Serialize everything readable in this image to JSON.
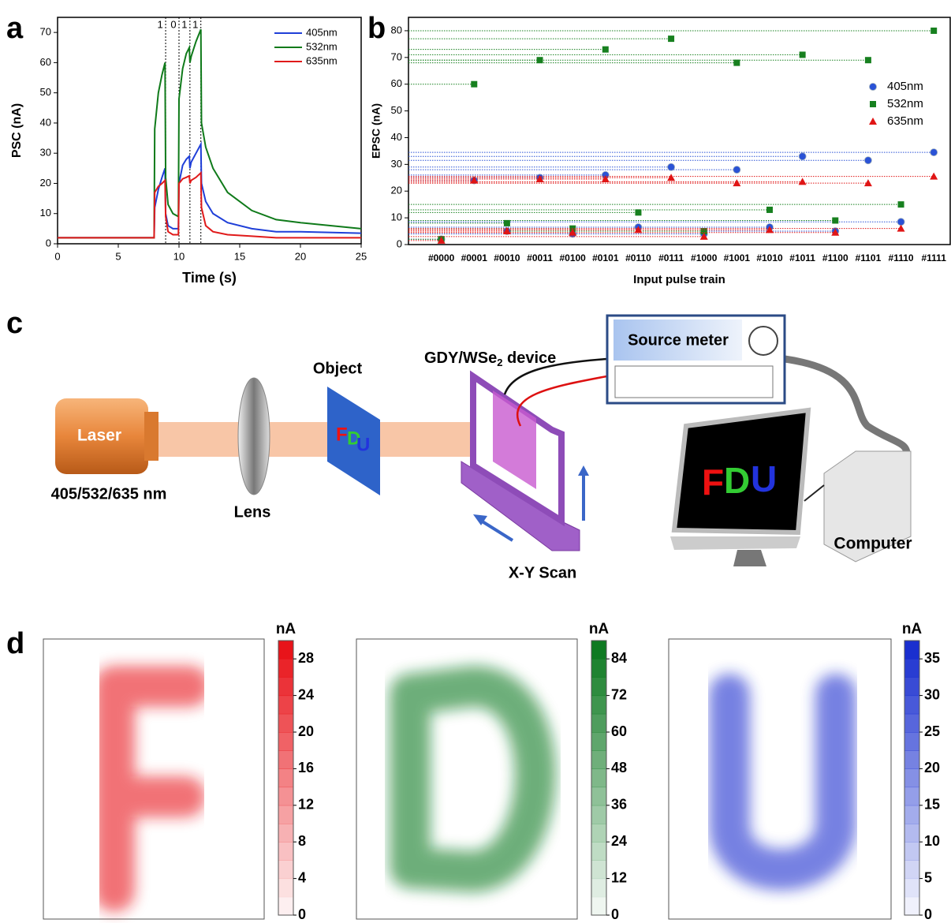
{
  "panel_labels": [
    "a",
    "b",
    "c",
    "d"
  ],
  "chart_data": [
    {
      "type": "line",
      "xlabel": "Time (s)",
      "ylabel": "PSC (nA)",
      "xlim": [
        0,
        25
      ],
      "xticks": [
        0,
        5,
        10,
        15,
        20,
        25
      ],
      "ylim": [
        0,
        75
      ],
      "yticks": [
        0,
        10,
        20,
        30,
        40,
        50,
        60,
        70
      ],
      "legend": "upper right",
      "annotations": [
        "1",
        "0",
        "1",
        "1"
      ],
      "pulse_edges": [
        8.9,
        10,
        10.9,
        11.8
      ],
      "x": [
        0,
        7.95,
        8.0,
        8.3,
        8.6,
        8.85,
        8.9,
        9.1,
        9.5,
        9.95,
        10.0,
        10.3,
        10.6,
        10.85,
        10.9,
        11.0,
        11.4,
        11.8,
        11.85,
        12.2,
        12.8,
        14,
        16,
        18,
        20,
        25
      ],
      "series": [
        {
          "name": "405nm",
          "color": "#1f3fd8",
          "values": [
            2,
            2,
            12,
            18,
            22,
            25,
            10,
            6,
            5,
            5,
            20,
            26,
            28,
            29,
            25,
            27,
            30,
            33,
            20,
            14,
            10,
            7,
            5,
            4,
            4,
            3.5
          ]
        },
        {
          "name": "532nm",
          "color": "#0f7a1a",
          "values": [
            2,
            2,
            38,
            50,
            56,
            60,
            22,
            13,
            10,
            9,
            48,
            58,
            63,
            65,
            60,
            62,
            67,
            71,
            40,
            32,
            25,
            17,
            11,
            8,
            7,
            5
          ]
        },
        {
          "name": "635nm",
          "color": "#e01a1a",
          "values": [
            2,
            2,
            17,
            19,
            20,
            21,
            9,
            4,
            3,
            3,
            20,
            21.5,
            22,
            22.5,
            20,
            21,
            22,
            23.5,
            12,
            6,
            4,
            3,
            2.5,
            2,
            2,
            2
          ]
        }
      ]
    },
    {
      "type": "scatter",
      "xlabel": "Input pulse train",
      "ylabel": "EPSC (nA)",
      "ylim": [
        0,
        85
      ],
      "yticks": [
        0,
        10,
        20,
        30,
        40,
        50,
        60,
        70,
        80
      ],
      "legend": "right",
      "categories": [
        "#0000",
        "#0001",
        "#0010",
        "#0011",
        "#0100",
        "#0101",
        "#0110",
        "#0111",
        "#1000",
        "#1001",
        "#1010",
        "#1011",
        "#1100",
        "#1101",
        "#1110",
        "#1111"
      ],
      "series": [
        {
          "name": "405nm",
          "color": "#2a52d6",
          "marker": "circle",
          "values": [
            2,
            24,
            5,
            25,
            4,
            26,
            6.5,
            29,
            4,
            28,
            6.5,
            33,
            5,
            31.5,
            8.5,
            34.5
          ]
        },
        {
          "name": "532nm",
          "color": "#17801f",
          "marker": "square",
          "values": [
            2,
            60,
            8,
            69,
            6,
            73,
            12,
            77,
            5,
            68,
            13,
            71,
            9,
            69,
            15,
            80
          ]
        },
        {
          "name": "635nm",
          "color": "#e01515",
          "marker": "triangle",
          "values": [
            1.5,
            24,
            5,
            24.5,
            4.5,
            24.5,
            5.5,
            25,
            3,
            23,
            5.5,
            23.5,
            4.5,
            23,
            6,
            25.5
          ]
        }
      ]
    },
    {
      "type": "heatmap",
      "colorbar_label": "nA",
      "color": "#e8141a",
      "ylim": [
        0,
        30
      ],
      "yticks": [
        0,
        4,
        8,
        12,
        16,
        20,
        24,
        28
      ]
    },
    {
      "type": "heatmap",
      "colorbar_label": "nA",
      "color": "#0f7a22",
      "ylim": [
        0,
        90
      ],
      "yticks": [
        0,
        12,
        24,
        36,
        48,
        60,
        72,
        84
      ]
    },
    {
      "type": "heatmap",
      "colorbar_label": "nA",
      "color": "#1a2fcf",
      "ylim": [
        0,
        37.5
      ],
      "yticks": [
        0,
        5,
        10,
        15,
        20,
        25,
        30,
        35
      ]
    }
  ],
  "diagram": {
    "laser": "Laser",
    "wavelengths": "405/532/635 nm",
    "lens": "Lens",
    "object": "Object",
    "device": "GDY/WSe",
    "device_sub": "2",
    "device_tail": " device",
    "source_meter": "Source meter",
    "scan": "X-Y Scan",
    "computer": "Computer",
    "screen_text": [
      "F",
      "D",
      "U"
    ]
  }
}
